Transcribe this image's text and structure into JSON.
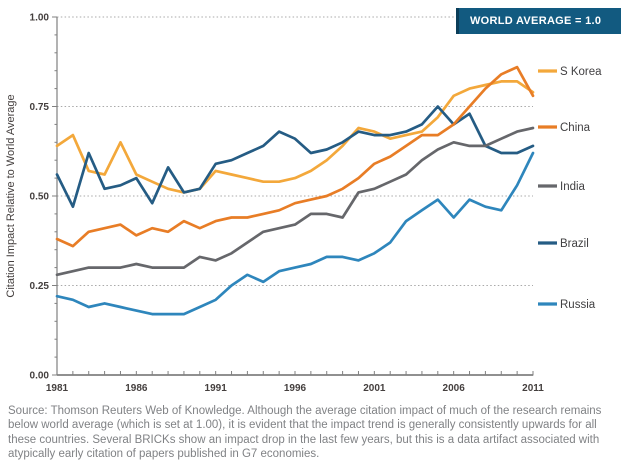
{
  "badge": {
    "label": "WORLD AVERAGE = 1.0",
    "bg_color": "#125A80",
    "edge_color": "#0B3E59",
    "text_color": "#FFFFFF"
  },
  "source_note": "Source: Thomson Reuters Web of Knowledge. Although the average citation impact of much of the research remains below world average (which is set at 1.00), it is evident that the impact trend is generally consistently upwards for all these countries. Several BRICKs show an impact drop in the last few years, but this is a data artifact associated with atypically early citation of papers published in G7 economies.",
  "chart_data": {
    "type": "line",
    "title": "",
    "ylabel": "Citation Impact Relative to World Average",
    "xlabel": "",
    "ylim": [
      0.0,
      1.0
    ],
    "xlim": [
      1981,
      2011
    ],
    "grid": "horizontal dotted gridlines every 0.25, no vertical gridlines",
    "legend_position": "right",
    "style": {
      "grid_color": "#A9A9A9",
      "axis_color": "#808080",
      "tick_label_color": "#443F3E",
      "legend_text_color": "#414042",
      "background": "#FFFFFF"
    },
    "y_ticks": [
      {
        "value": 1.0,
        "label": "1.00"
      },
      {
        "value": 0.75,
        "label": "0.75"
      },
      {
        "value": 0.5,
        "label": "0.50"
      },
      {
        "value": 0.25,
        "label": "0.25"
      },
      {
        "value": 0.0,
        "label": "0.00"
      }
    ],
    "x_ticks": [
      {
        "value": 1981,
        "label": "1981"
      },
      {
        "value": 1986,
        "label": "1986"
      },
      {
        "value": 1991,
        "label": "1991"
      },
      {
        "value": 1996,
        "label": "1996"
      },
      {
        "value": 2001,
        "label": "2001"
      },
      {
        "value": 2006,
        "label": "2006"
      },
      {
        "value": 2011,
        "label": "2011"
      }
    ],
    "x": [
      1981,
      1982,
      1983,
      1984,
      1985,
      1986,
      1987,
      1988,
      1989,
      1990,
      1991,
      1992,
      1993,
      1994,
      1995,
      1996,
      1997,
      1998,
      1999,
      2000,
      2001,
      2002,
      2003,
      2004,
      2005,
      2006,
      2007,
      2008,
      2009,
      2010,
      2011
    ],
    "series": [
      {
        "name": "S Korea",
        "color": "#F3A83B",
        "values": [
          0.64,
          0.67,
          0.57,
          0.56,
          0.65,
          0.56,
          0.54,
          0.52,
          0.51,
          0.52,
          0.57,
          0.56,
          0.55,
          0.54,
          0.54,
          0.55,
          0.57,
          0.6,
          0.64,
          0.69,
          0.68,
          0.66,
          0.67,
          0.68,
          0.72,
          0.78,
          0.8,
          0.81,
          0.82,
          0.82,
          0.79
        ]
      },
      {
        "name": "China",
        "color": "#E87D26",
        "values": [
          0.38,
          0.36,
          0.4,
          0.41,
          0.42,
          0.39,
          0.41,
          0.4,
          0.43,
          0.41,
          0.43,
          0.44,
          0.44,
          0.45,
          0.46,
          0.48,
          0.49,
          0.5,
          0.52,
          0.55,
          0.59,
          0.61,
          0.64,
          0.67,
          0.67,
          0.7,
          0.75,
          0.8,
          0.84,
          0.86,
          0.78
        ]
      },
      {
        "name": "India",
        "color": "#66676B",
        "values": [
          0.28,
          0.29,
          0.3,
          0.3,
          0.3,
          0.31,
          0.3,
          0.3,
          0.3,
          0.33,
          0.32,
          0.34,
          0.37,
          0.4,
          0.41,
          0.42,
          0.45,
          0.45,
          0.44,
          0.51,
          0.52,
          0.54,
          0.56,
          0.6,
          0.63,
          0.65,
          0.64,
          0.64,
          0.66,
          0.68,
          0.69
        ]
      },
      {
        "name": "Brazil",
        "color": "#255C84",
        "values": [
          0.56,
          0.47,
          0.62,
          0.52,
          0.53,
          0.55,
          0.48,
          0.58,
          0.51,
          0.52,
          0.59,
          0.6,
          0.62,
          0.64,
          0.68,
          0.66,
          0.62,
          0.63,
          0.65,
          0.68,
          0.67,
          0.67,
          0.68,
          0.7,
          0.75,
          0.7,
          0.73,
          0.64,
          0.62,
          0.62,
          0.64
        ]
      },
      {
        "name": "Russia",
        "color": "#2E86BC",
        "values": [
          0.22,
          0.21,
          0.19,
          0.2,
          0.19,
          0.18,
          0.17,
          0.17,
          0.17,
          0.19,
          0.21,
          0.25,
          0.28,
          0.26,
          0.29,
          0.3,
          0.31,
          0.33,
          0.33,
          0.32,
          0.34,
          0.37,
          0.43,
          0.46,
          0.49,
          0.44,
          0.49,
          0.47,
          0.46,
          0.53,
          0.62
        ]
      }
    ]
  }
}
